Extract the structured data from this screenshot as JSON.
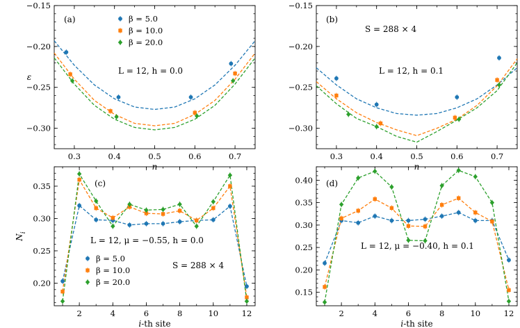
{
  "figure": {
    "series_styles": [
      {
        "name": "β = 5.0",
        "color": "#1f77b4",
        "marker": "circle"
      },
      {
        "name": "β = 10.0",
        "color": "#ff7f0e",
        "marker": "square"
      },
      {
        "name": "β = 20.0",
        "color": "#2ca02c",
        "marker": "diamond"
      }
    ]
  },
  "chart_data": [
    {
      "id": "a",
      "type": "scatter",
      "panel_label": "(a)",
      "xlabel": "n",
      "ylabel": "ε",
      "xlim": [
        0.25,
        0.75
      ],
      "ylim": [
        -0.325,
        -0.15
      ],
      "xticks": [
        0.3,
        0.4,
        0.5,
        0.6,
        0.7
      ],
      "yticks": [
        -0.3,
        -0.25,
        -0.2,
        -0.15
      ],
      "xtick_labels": [
        "0.3",
        "0.4",
        "0.5",
        "0.6",
        "0.7"
      ],
      "ytick_labels": [
        "−0.30",
        "−0.25",
        "−0.20",
        "−0.15"
      ],
      "annotations": [
        "L = 12, h = 0.0"
      ],
      "legend": {
        "position": "top-center",
        "entries": [
          "β = 5.0",
          "β = 10.0",
          "β = 20.0"
        ]
      },
      "series": [
        {
          "name": "β = 5.0",
          "x": [
            0.28,
            0.41,
            0.59,
            0.69
          ],
          "values": [
            -0.207,
            -0.262,
            -0.262,
            -0.221
          ]
        },
        {
          "name": "β = 10.0",
          "x": [
            0.29,
            0.39,
            0.6,
            0.7
          ],
          "values": [
            -0.234,
            -0.279,
            -0.281,
            -0.233
          ]
        },
        {
          "name": "β = 20.0",
          "x": [
            0.295,
            0.405,
            0.605,
            0.695
          ],
          "values": [
            -0.242,
            -0.286,
            -0.285,
            -0.242
          ]
        }
      ],
      "fits": [
        {
          "name": "β = 5.0",
          "x": [
            0.25,
            0.3,
            0.35,
            0.4,
            0.45,
            0.5,
            0.55,
            0.6,
            0.65,
            0.7,
            0.75
          ],
          "values": [
            -0.193,
            -0.223,
            -0.247,
            -0.264,
            -0.274,
            -0.277,
            -0.274,
            -0.264,
            -0.247,
            -0.223,
            -0.193
          ]
        },
        {
          "name": "β = 10.0",
          "x": [
            0.25,
            0.3,
            0.35,
            0.4,
            0.45,
            0.5,
            0.55,
            0.6,
            0.65,
            0.7,
            0.75
          ],
          "values": [
            -0.208,
            -0.24,
            -0.266,
            -0.283,
            -0.294,
            -0.297,
            -0.294,
            -0.283,
            -0.266,
            -0.24,
            -0.208
          ]
        },
        {
          "name": "β = 20.0",
          "x": [
            0.25,
            0.3,
            0.35,
            0.4,
            0.45,
            0.5,
            0.55,
            0.6,
            0.65,
            0.7,
            0.75
          ],
          "values": [
            -0.214,
            -0.246,
            -0.272,
            -0.289,
            -0.299,
            -0.302,
            -0.299,
            -0.289,
            -0.272,
            -0.246,
            -0.214
          ]
        }
      ]
    },
    {
      "id": "b",
      "type": "scatter",
      "panel_label": "(b)",
      "xlabel": "n",
      "ylabel": "",
      "xlim": [
        0.25,
        0.75
      ],
      "ylim": [
        -0.325,
        -0.15
      ],
      "xticks": [
        0.3,
        0.4,
        0.5,
        0.6,
        0.7
      ],
      "yticks": [
        -0.3,
        -0.25,
        -0.2,
        -0.15
      ],
      "xtick_labels": [
        "0.3",
        "0.4",
        "0.5",
        "0.6",
        "0.7"
      ],
      "ytick_labels": [
        "−0.30",
        "−0.25",
        "−0.20",
        "−0.15"
      ],
      "annotations": [
        "S = 288 × 4",
        "L = 12, h = 0.1"
      ],
      "series": [
        {
          "name": "β = 5.0",
          "x": [
            0.3,
            0.4,
            0.6,
            0.705
          ],
          "values": [
            -0.239,
            -0.271,
            -0.262,
            -0.214
          ]
        },
        {
          "name": "β = 10.0",
          "x": [
            0.3,
            0.41,
            0.595,
            0.7
          ],
          "values": [
            -0.26,
            -0.294,
            -0.287,
            -0.241
          ]
        },
        {
          "name": "β = 20.0",
          "x": [
            0.33,
            0.4,
            0.605,
            0.705
          ],
          "values": [
            -0.283,
            -0.298,
            -0.289,
            -0.247
          ]
        }
      ],
      "fits": [
        {
          "name": "β = 5.0",
          "x": [
            0.25,
            0.3,
            0.35,
            0.4,
            0.45,
            0.5,
            0.55,
            0.6,
            0.65,
            0.7,
            0.75
          ],
          "values": [
            -0.226,
            -0.247,
            -0.264,
            -0.275,
            -0.282,
            -0.284,
            -0.282,
            -0.275,
            -0.264,
            -0.247,
            -0.226
          ]
        },
        {
          "name": "β = 10.0",
          "x": [
            0.25,
            0.3,
            0.35,
            0.4,
            0.45,
            0.5,
            0.55,
            0.6,
            0.65,
            0.7,
            0.75
          ],
          "values": [
            -0.243,
            -0.264,
            -0.281,
            -0.293,
            -0.302,
            -0.309,
            -0.3,
            -0.289,
            -0.272,
            -0.248,
            -0.215
          ]
        },
        {
          "name": "β = 20.0",
          "x": [
            0.25,
            0.3,
            0.35,
            0.4,
            0.45,
            0.5,
            0.55,
            0.6,
            0.65,
            0.7,
            0.75
          ],
          "values": [
            -0.248,
            -0.27,
            -0.288,
            -0.298,
            -0.31,
            -0.317,
            -0.304,
            -0.29,
            -0.275,
            -0.254,
            -0.22
          ]
        }
      ]
    },
    {
      "id": "c",
      "type": "line",
      "panel_label": "(c)",
      "xlabel": "i-th site",
      "ylabel": "N_i",
      "xlim": [
        0.5,
        12.5
      ],
      "ylim": [
        0.165,
        0.38
      ],
      "xticks": [
        2,
        4,
        6,
        8,
        10,
        12
      ],
      "yticks": [
        0.2,
        0.25,
        0.3,
        0.35
      ],
      "xtick_labels": [
        "2",
        "4",
        "6",
        "8",
        "10",
        "12"
      ],
      "ytick_labels": [
        "0.20",
        "0.25",
        "0.30",
        "0.35"
      ],
      "annotations": [
        "L = 12, μ = −0.55, h = 0.0",
        "S = 288 × 4"
      ],
      "legend": {
        "position": "bottom-left",
        "entries": [
          "β = 5.0",
          "β = 10.0",
          "β = 20.0"
        ]
      },
      "categories": [
        1,
        2,
        3,
        4,
        5,
        6,
        7,
        8,
        9,
        10,
        11,
        12
      ],
      "series": [
        {
          "name": "β = 5.0",
          "values": [
            0.203,
            0.32,
            0.298,
            0.297,
            0.29,
            0.292,
            0.292,
            0.295,
            0.297,
            0.298,
            0.319,
            0.195
          ]
        },
        {
          "name": "β = 10.0",
          "values": [
            0.187,
            0.36,
            0.316,
            0.301,
            0.318,
            0.308,
            0.307,
            0.312,
            0.297,
            0.316,
            0.35,
            0.178
          ]
        },
        {
          "name": "β = 20.0",
          "values": [
            0.172,
            0.369,
            0.327,
            0.288,
            0.322,
            0.313,
            0.314,
            0.322,
            0.288,
            0.326,
            0.367,
            0.172
          ]
        }
      ]
    },
    {
      "id": "d",
      "type": "line",
      "panel_label": "(d)",
      "xlabel": "i-th site",
      "ylabel": "",
      "xlim": [
        0.5,
        12.5
      ],
      "ylim": [
        0.12,
        0.43
      ],
      "xticks": [
        2,
        4,
        6,
        8,
        10,
        12
      ],
      "yticks": [
        0.15,
        0.2,
        0.25,
        0.3,
        0.35,
        0.4
      ],
      "xtick_labels": [
        "2",
        "4",
        "6",
        "8",
        "10",
        "12"
      ],
      "ytick_labels": [
        "0.15",
        "0.20",
        "0.25",
        "0.30",
        "0.35",
        "0.40"
      ],
      "annotations": [
        "L = 12, μ = −0.40, h = 0.1"
      ],
      "categories": [
        1,
        2,
        3,
        4,
        5,
        6,
        7,
        8,
        9,
        10,
        11,
        12
      ],
      "series": [
        {
          "name": "β = 5.0",
          "values": [
            0.215,
            0.31,
            0.305,
            0.32,
            0.31,
            0.31,
            0.313,
            0.32,
            0.328,
            0.31,
            0.31,
            0.222
          ]
        },
        {
          "name": "β = 10.0",
          "values": [
            0.162,
            0.315,
            0.332,
            0.358,
            0.338,
            0.298,
            0.297,
            0.345,
            0.36,
            0.328,
            0.308,
            0.155
          ]
        },
        {
          "name": "β = 20.0",
          "values": [
            0.128,
            0.346,
            0.405,
            0.42,
            0.385,
            0.266,
            0.265,
            0.388,
            0.422,
            0.408,
            0.35,
            0.13
          ]
        }
      ]
    }
  ]
}
